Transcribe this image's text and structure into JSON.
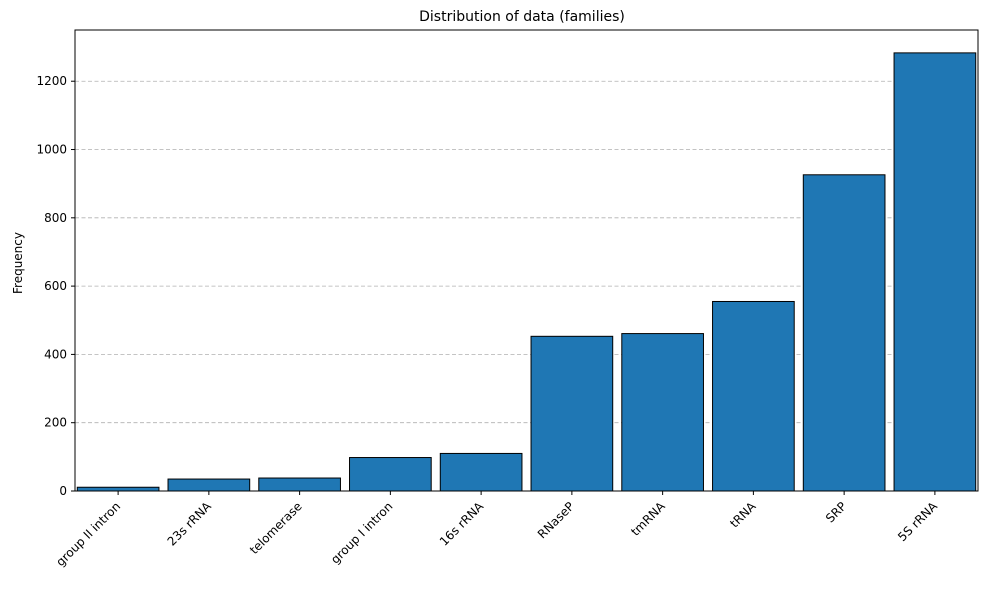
{
  "chart_data": {
    "type": "bar",
    "title": "Distribution of data (families)",
    "xlabel": "",
    "ylabel": "Frequency",
    "categories": [
      "group II intron",
      "23s rRNA",
      "telomerase",
      "group I intron",
      "16s rRNA",
      "RNaseP",
      "tmRNA",
      "tRNA",
      "SRP",
      "5S rRNA"
    ],
    "values": [
      11,
      35,
      38,
      98,
      110,
      453,
      461,
      555,
      926,
      1283
    ],
    "ylim": [
      0,
      1350
    ],
    "yticks": [
      0,
      200,
      400,
      600,
      800,
      1000,
      1200
    ],
    "grid": "horizontal-dashed",
    "bar_color": "#1f77b4",
    "edge_color": "#000000",
    "grid_color": "#b0b0b0"
  }
}
